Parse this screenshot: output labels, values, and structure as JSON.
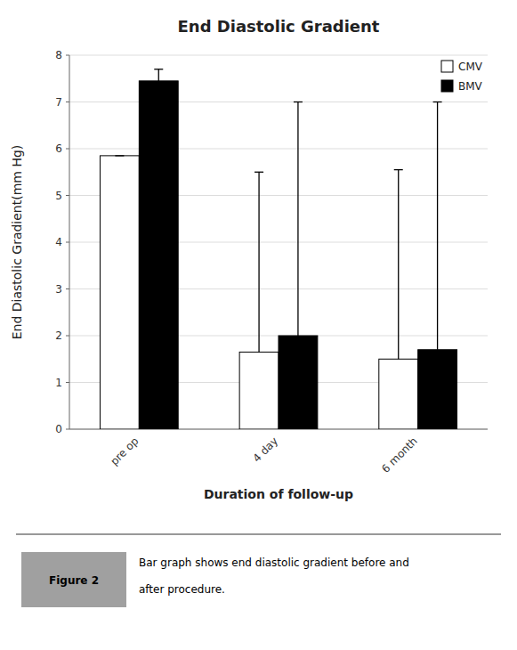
{
  "chart_data": {
    "type": "bar",
    "title": "End Diastolic Gradient",
    "x_label": "Duration of follow-up",
    "y_label": "End Diastolic Gradient(mm Hg)",
    "categories": [
      "pre op",
      "4 day",
      "6 month"
    ],
    "series": [
      {
        "name": "CMV",
        "color": "white",
        "values": [
          5.85,
          1.65,
          1.5
        ],
        "errors_up": [
          0.0,
          3.85,
          4.05
        ]
      },
      {
        "name": "BMV",
        "color": "black",
        "values": [
          7.45,
          2.0,
          1.7
        ],
        "errors_up": [
          0.25,
          5.0,
          5.3
        ]
      }
    ],
    "ylim": [
      0,
      8
    ],
    "yticks": [
      0,
      1,
      2,
      3,
      4,
      5,
      6,
      7,
      8
    ],
    "grid": true,
    "legend": "upper right",
    "annotations": [
      "Figure 2",
      "Bar graph shows end diastolic gradient before and",
      "after procedure."
    ]
  }
}
